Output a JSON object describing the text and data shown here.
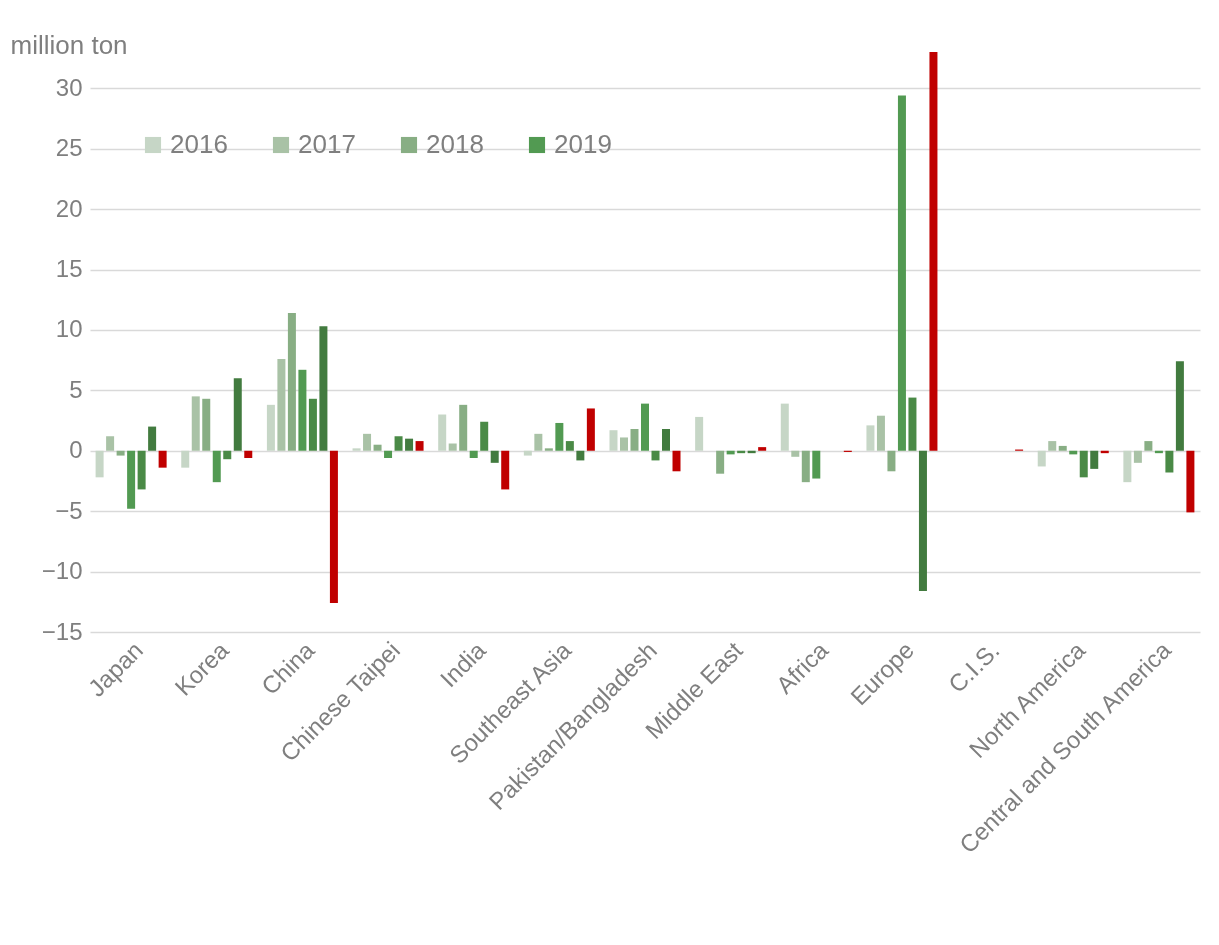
{
  "chart_data": {
    "type": "bar",
    "ylabel": "million ton",
    "categories": [
      "Japan",
      "Korea",
      "China",
      "Chinese Taipei",
      "India",
      "Southeast Asia",
      "Pakistan/Bangladesh",
      "Middle East",
      "Africa",
      "Europe",
      "C.I.S.",
      "North America",
      "Central and South America"
    ],
    "series": [
      {
        "name": "2016",
        "color": "#c6d6c6",
        "values": [
          -2.2,
          -1.4,
          3.8,
          0.2,
          3.0,
          -0.4,
          1.7,
          2.8,
          3.9,
          2.1,
          0,
          -1.3,
          -2.6
        ]
      },
      {
        "name": "2017",
        "color": "#a9c2a6",
        "values": [
          1.2,
          4.5,
          7.6,
          1.4,
          0.6,
          1.4,
          1.1,
          0,
          -0.5,
          2.9,
          0,
          0.8,
          -1.0
        ]
      },
      {
        "name": "2018",
        "color": "#88ae84",
        "values": [
          -0.4,
          4.3,
          11.4,
          0.5,
          3.8,
          0.2,
          1.8,
          -1.9,
          -2.6,
          -1.7,
          0,
          0.4,
          0.8
        ]
      },
      {
        "name": "2019",
        "color": "#529a52",
        "values": [
          -4.8,
          -2.6,
          6.7,
          -0.6,
          -0.6,
          2.3,
          3.9,
          -0.3,
          -2.3,
          29.4,
          0,
          -0.3,
          -0.2
        ]
      },
      {
        "color": "#4a8a46",
        "values": [
          -3.2,
          -0.7,
          4.3,
          1.2,
          2.4,
          0.8,
          -0.8,
          -0.2,
          0,
          4.4,
          0,
          -2.2,
          -1.8
        ]
      },
      {
        "color": "#427b3f",
        "values": [
          2.0,
          6.0,
          10.3,
          1.0,
          -1.0,
          -0.8,
          1.8,
          -0.2,
          0,
          -11.6,
          0,
          -1.5,
          7.4
        ]
      },
      {
        "color": "#c00000",
        "values": [
          -1.4,
          -0.6,
          -12.6,
          0.8,
          -3.2,
          3.5,
          -1.7,
          0.3,
          -0.1,
          33,
          0.1,
          -0.2,
          -5.1
        ]
      }
    ],
    "ylim": [
      -15,
      33
    ],
    "yticks": [
      -15,
      -10,
      -5,
      0,
      5,
      10,
      15,
      20,
      25,
      30
    ],
    "grid": "y",
    "legend": "top left"
  }
}
